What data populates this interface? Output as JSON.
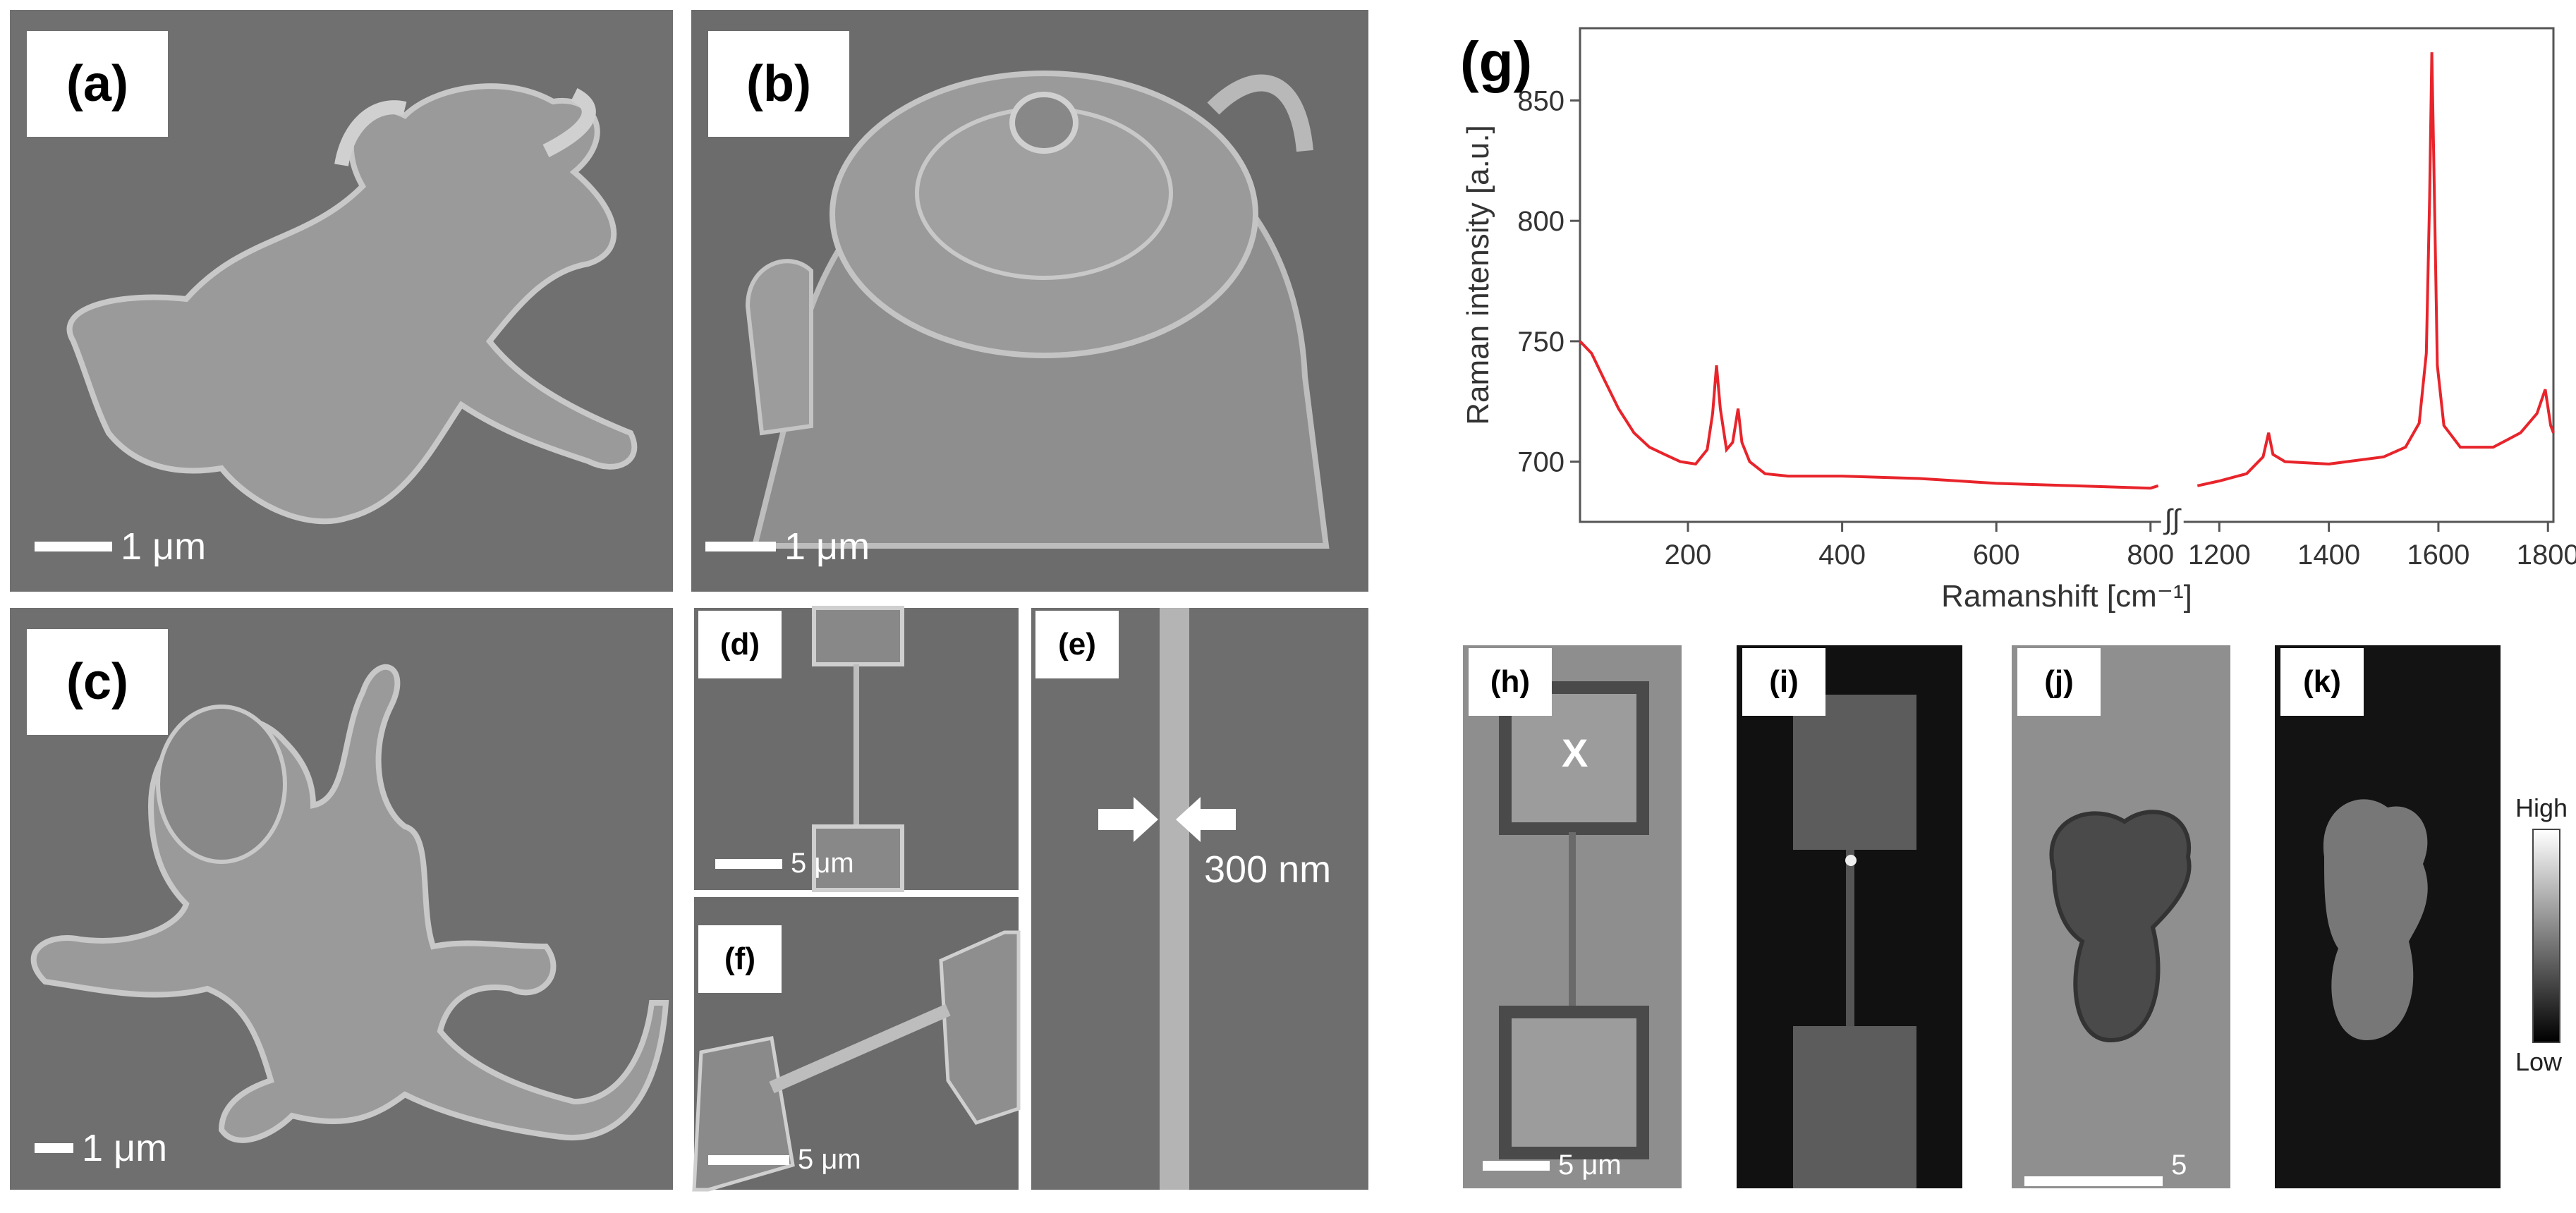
{
  "panels": {
    "a": {
      "label": "(a)",
      "scale": "1 μm"
    },
    "b": {
      "label": "(b)",
      "scale": "1 μm"
    },
    "c": {
      "label": "(c)",
      "scale": "1 μm"
    },
    "d": {
      "label": "(d)",
      "scale": "5 μm"
    },
    "e": {
      "label": "(e)",
      "annotation": "300 nm"
    },
    "f": {
      "label": "(f)",
      "scale": "5 μm"
    },
    "g": {
      "label": "(g)"
    },
    "h": {
      "label": "(h)",
      "scale": "5 μm",
      "marker": "X"
    },
    "i": {
      "label": "(i)"
    },
    "j": {
      "label": "(j)",
      "scale": "5 μm"
    },
    "k": {
      "label": "(k)"
    }
  },
  "colorbar": {
    "high": "High",
    "low": "Low"
  },
  "chart_data": {
    "type": "line",
    "title": "",
    "xlabel": "Ramanshift [cm⁻¹]",
    "ylabel": "Raman intensity [a.u.]",
    "xticks": [
      200,
      400,
      600,
      800,
      1200,
      1400,
      1600,
      1800
    ],
    "yticks": [
      700,
      750,
      800,
      850
    ],
    "ylim": [
      675,
      880
    ],
    "axis_break": {
      "from": 810,
      "to": 1140,
      "symbol": "∫∫"
    },
    "series": [
      {
        "color": "#e8242b",
        "segments": [
          [
            [
              60,
              750
            ],
            [
              75,
              745
            ],
            [
              90,
              735
            ],
            [
              110,
              722
            ],
            [
              130,
              712
            ],
            [
              150,
              706
            ],
            [
              170,
              703
            ],
            [
              190,
              700
            ],
            [
              210,
              699
            ],
            [
              225,
              705
            ],
            [
              232,
              720
            ],
            [
              237,
              740
            ],
            [
              242,
              722
            ],
            [
              250,
              705
            ],
            [
              258,
              708
            ],
            [
              265,
              722
            ],
            [
              270,
              708
            ],
            [
              280,
              700
            ],
            [
              300,
              695
            ],
            [
              330,
              694
            ],
            [
              400,
              694
            ],
            [
              500,
              693
            ],
            [
              600,
              691
            ],
            [
              700,
              690
            ],
            [
              800,
              689
            ],
            [
              810,
              690
            ]
          ],
          [
            [
              1160,
              690
            ],
            [
              1200,
              692
            ],
            [
              1250,
              695
            ],
            [
              1280,
              702
            ],
            [
              1290,
              712
            ],
            [
              1298,
              703
            ],
            [
              1320,
              700
            ],
            [
              1400,
              699
            ],
            [
              1500,
              702
            ],
            [
              1540,
              706
            ],
            [
              1565,
              716
            ],
            [
              1578,
              745
            ],
            [
              1584,
              810
            ],
            [
              1588,
              870
            ],
            [
              1592,
              820
            ],
            [
              1598,
              740
            ],
            [
              1610,
              715
            ],
            [
              1640,
              706
            ],
            [
              1700,
              706
            ],
            [
              1750,
              712
            ],
            [
              1780,
              720
            ],
            [
              1795,
              730
            ],
            [
              1805,
              715
            ],
            [
              1810,
              712
            ]
          ]
        ]
      }
    ]
  }
}
